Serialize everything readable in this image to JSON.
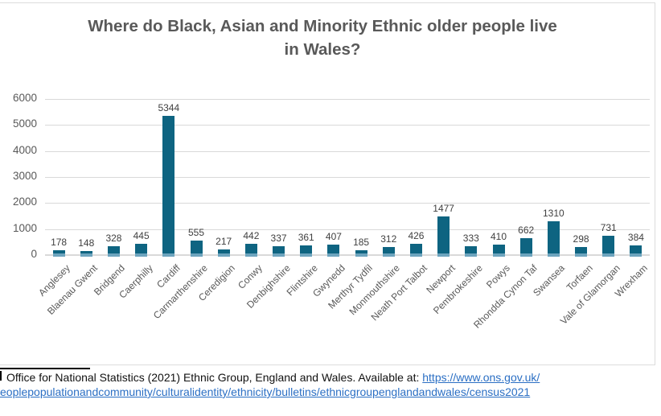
{
  "chart_data": {
    "type": "bar",
    "title": "Where do Black, Asian and Minority Ethnic older people live in Wales?",
    "categories": [
      "Anglesey",
      "Blaenau Gwent",
      "Bridgend",
      "Caerphilly",
      "Cardiff",
      "Carmarthenshire",
      "Ceredigion",
      "Conwy",
      "Denbighshire",
      "Flintshire",
      "Gwynedd",
      "Merthyr Tydfil",
      "Monmouthshire",
      "Neath Port Talbot",
      "Newport",
      "Pembrokeshire",
      "Powys",
      "Rhondda Cynon Taf",
      "Swansea",
      "Torfaen",
      "Vale of Glamorgan",
      "Wrexham"
    ],
    "values": [
      178,
      148,
      328,
      445,
      5344,
      555,
      217,
      442,
      337,
      361,
      407,
      185,
      312,
      426,
      1477,
      333,
      410,
      662,
      1310,
      298,
      731,
      384
    ],
    "xlabel": "",
    "ylabel": "",
    "ylim": [
      0,
      6000
    ],
    "yticks": [
      0,
      1000,
      2000,
      3000,
      4000,
      5000,
      6000
    ],
    "grid": true,
    "data_labels": true,
    "legend": "none",
    "bar_color": "#0e6481",
    "bar_base_color": "#6da4be",
    "gridline_color": "#d9d9d9",
    "label_color": "#404040",
    "axis_text_color": "#595959"
  },
  "footer": {
    "source_prefix": "Office for National Statistics (2021) Ethnic Group, England and Wales. Available at: ",
    "link_line1": "https://www.ons.gov.uk/",
    "link_line2": "eoplepopulationandcommunity/culturalidentity/ethnicity/bulletins/ethnicgroupenglandandwales/census2021"
  }
}
